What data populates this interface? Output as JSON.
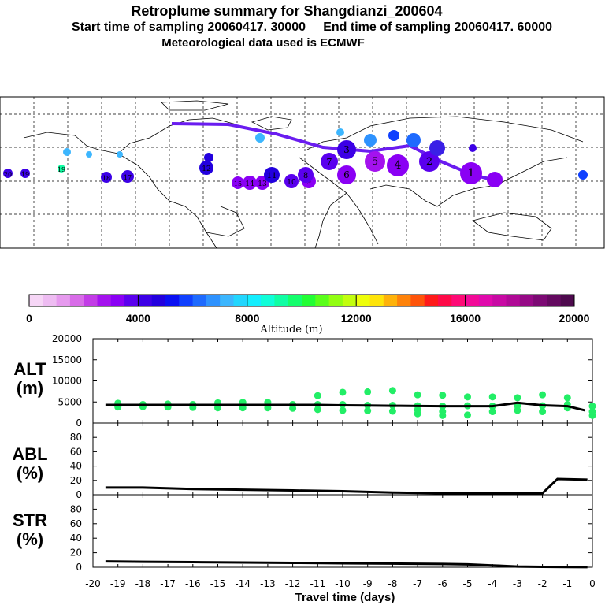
{
  "header": {
    "title": "Retroplume summary for Shangdianzi_200604",
    "sampling_line": "Start time of sampling 20060417. 30000     End time of sampling 20060417. 60000",
    "met_line": "Meteorological data used is ECMWF"
  },
  "colorbar": {
    "ticks": [
      "0",
      "4000",
      "8000",
      "12000",
      "16000",
      "20000"
    ],
    "label": "Altitude (m)",
    "colors": [
      "#f6d6f6",
      "#eebcf2",
      "#e69aee",
      "#d86ce8",
      "#c23ce6",
      "#a412ee",
      "#8a00f4",
      "#5a00ee",
      "#3c00e6",
      "#2200de",
      "#0a10f2",
      "#1040fe",
      "#1e6afe",
      "#2e92fe",
      "#3cb6fe",
      "#22d6fe",
      "#14eefe",
      "#10fed8",
      "#10fea4",
      "#14fe6c",
      "#22fe34",
      "#5afe1a",
      "#92fe12",
      "#c2fe0e",
      "#eefe0a",
      "#fee40a",
      "#feb20a",
      "#fe820a",
      "#fe540a",
      "#fe1a1a",
      "#fe0a48",
      "#fe0a76",
      "#f20a98",
      "#e00aac",
      "#c80aa4",
      "#b00a96",
      "#960a86",
      "#7c0a74",
      "#640a60",
      "#4e0a4e"
    ]
  },
  "map": {
    "markers": [
      {
        "label": "20",
        "alt": 4200
      },
      {
        "label": "19",
        "alt": 4000
      },
      {
        "label": "18",
        "alt": 4100
      },
      {
        "label": "19",
        "alt": 9000
      },
      {
        "label": "17",
        "alt": 4000
      },
      {
        "label": "15",
        "alt": 3200
      },
      {
        "label": "14",
        "alt": 3000
      },
      {
        "label": "13",
        "alt": 3400
      },
      {
        "label": "11",
        "alt": 4600
      },
      {
        "label": "12",
        "alt": 4800
      },
      {
        "label": "10",
        "alt": 3500
      },
      {
        "label": "9",
        "alt": 3000
      },
      {
        "label": "8",
        "alt": 3800
      },
      {
        "label": "7",
        "alt": 3600
      },
      {
        "label": "6",
        "alt": 3000
      },
      {
        "label": "5",
        "alt": 2600
      },
      {
        "label": "4",
        "alt": 3200
      },
      {
        "label": "3",
        "alt": 4200
      },
      {
        "label": "2",
        "alt": 3600
      },
      {
        "label": "1",
        "alt": 3000
      }
    ]
  },
  "panels": {
    "alt": {
      "label_top": "ALT",
      "label_bottom": "(m)",
      "yticks": [
        "20000",
        "15000",
        "10000",
        "5000",
        "0"
      ]
    },
    "abl": {
      "label_top": "ABL",
      "label_bottom": "(%)",
      "yticks": [
        "80",
        "60",
        "40",
        "20",
        "0"
      ]
    },
    "str": {
      "label_top": "STR",
      "label_bottom": "(%)",
      "yticks": [
        "80",
        "60",
        "40",
        "20",
        "0"
      ]
    },
    "xticks": [
      "-20",
      "-19",
      "-18",
      "-17",
      "-16",
      "-15",
      "-14",
      "-13",
      "-12",
      "-11",
      "-10",
      "-9",
      "-8",
      "-7",
      "-6",
      "-5",
      "-4",
      "-3",
      "-2",
      "-1",
      "0"
    ],
    "xlabel": "Travel time (days)"
  },
  "chart_data": [
    {
      "type": "line",
      "title": "ALT",
      "ylabel": "ALT (m)",
      "xlabel": "Travel time (days)",
      "xlim": [
        -20,
        0
      ],
      "ylim": [
        0,
        20000
      ],
      "x": [
        -19.5,
        -19,
        -18,
        -17,
        -16,
        -15,
        -14,
        -13,
        -12,
        -11,
        -10,
        -9,
        -8,
        -7,
        -6,
        -5,
        -4,
        -3,
        -2,
        -1,
        -0.3
      ],
      "values": [
        4300,
        4300,
        4300,
        4300,
        4300,
        4300,
        4300,
        4300,
        4300,
        4300,
        4200,
        4150,
        4100,
        4050,
        4000,
        4000,
        4000,
        4800,
        4200,
        4000,
        3000
      ],
      "scatter_x": [
        -19,
        -19,
        -19,
        -18,
        -18,
        -17,
        -17,
        -16,
        -16,
        -15,
        -15,
        -15,
        -14,
        -14,
        -14,
        -13,
        -13,
        -13,
        -12,
        -12,
        -11,
        -11,
        -11,
        -10,
        -10,
        -10,
        -9,
        -9,
        -9,
        -8,
        -8,
        -8,
        -7,
        -7,
        -7,
        -7,
        -6,
        -6,
        -6,
        -6,
        -5,
        -5,
        -5,
        -4,
        -4,
        -4,
        -3,
        -3,
        -3,
        -2,
        -2,
        -2,
        -1,
        -1,
        -1,
        0,
        0,
        0
      ],
      "scatter_y": [
        3800,
        4300,
        4700,
        3900,
        4400,
        3800,
        4500,
        3700,
        4400,
        3600,
        4300,
        4800,
        3600,
        4400,
        4900,
        3600,
        4300,
        4900,
        3500,
        4400,
        3200,
        4400,
        6500,
        3000,
        4400,
        7300,
        2900,
        4200,
        7400,
        2800,
        4200,
        7700,
        2200,
        3100,
        4100,
        6700,
        1800,
        2700,
        4000,
        6600,
        1900,
        4100,
        6200,
        2700,
        4000,
        6200,
        3000,
        4100,
        6000,
        2700,
        4100,
        6700,
        3600,
        4400,
        6000,
        1800,
        2700,
        4000
      ]
    },
    {
      "type": "line",
      "title": "ABL",
      "ylabel": "ABL (%)",
      "xlabel": "Travel time (days)",
      "xlim": [
        -20,
        0
      ],
      "ylim": [
        0,
        100
      ],
      "x": [
        -19.5,
        -18,
        -16,
        -14,
        -12,
        -10,
        -8,
        -6,
        -4,
        -2,
        -1.4,
        -0.2
      ],
      "values": [
        10,
        10,
        8,
        7,
        6,
        5,
        3,
        2,
        2,
        2,
        22,
        21
      ]
    },
    {
      "type": "line",
      "title": "STR",
      "ylabel": "STR (%)",
      "xlabel": "Travel time (days)",
      "xlim": [
        -20,
        0
      ],
      "ylim": [
        0,
        100
      ],
      "x": [
        -19.5,
        -18,
        -16,
        -14,
        -12,
        -10,
        -8,
        -6,
        -5,
        -4,
        -3,
        -2,
        -1,
        -0.2
      ],
      "values": [
        8,
        7.5,
        7,
        6.5,
        6,
        5.5,
        5,
        4.5,
        4,
        2.5,
        1,
        0.5,
        0.3,
        0.2
      ]
    }
  ]
}
